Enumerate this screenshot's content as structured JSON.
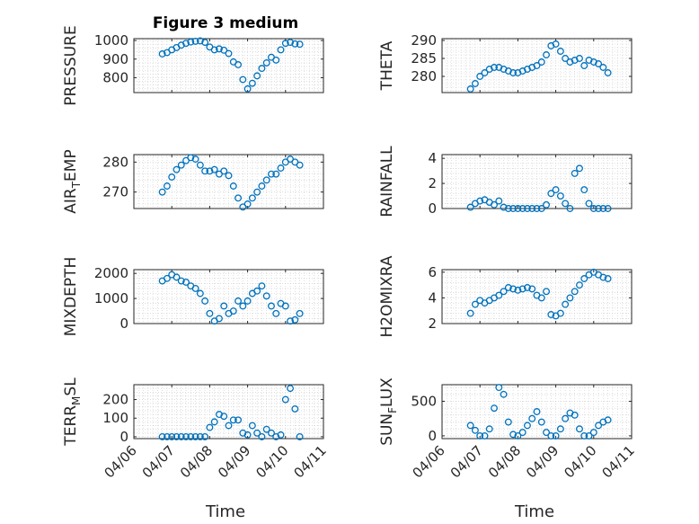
{
  "figure": {
    "title": "Figure 3 medium",
    "xlabel": "Time",
    "x_ticks": [
      "04/06",
      "04/07",
      "04/08",
      "04/09",
      "04/10",
      "04/11"
    ]
  },
  "chart_data": [
    {
      "type": "scatter",
      "ylabel": "PRESSURE",
      "ylim": [
        720,
        1010
      ],
      "yticks": [
        800,
        900,
        1000
      ],
      "ytick_labels": [
        "800",
        "900",
        "1000"
      ],
      "xlim": [
        "04/06",
        "04/11"
      ],
      "marker": "circle",
      "grid": "minor",
      "color": "#0072BD",
      "points": [
        [
          "04/06 18:00",
          928
        ],
        [
          "04/06 21:00",
          935
        ],
        [
          "04/07 00:00",
          950
        ],
        [
          "04/07 03:00",
          962
        ],
        [
          "04/07 06:00",
          975
        ],
        [
          "04/07 09:00",
          985
        ],
        [
          "04/07 12:00",
          992
        ],
        [
          "04/07 15:00",
          996
        ],
        [
          "04/07 18:00",
          998
        ],
        [
          "04/07 21:00",
          990
        ],
        [
          "04/08 00:00",
          965
        ],
        [
          "04/08 03:00",
          950
        ],
        [
          "04/08 06:00",
          955
        ],
        [
          "04/08 09:00",
          948
        ],
        [
          "04/08 12:00",
          930
        ],
        [
          "04/08 15:00",
          885
        ],
        [
          "04/08 18:00",
          870
        ],
        [
          "04/08 21:00",
          790
        ],
        [
          "04/09 00:00",
          740
        ],
        [
          "04/09 03:00",
          770
        ],
        [
          "04/09 06:00",
          810
        ],
        [
          "04/09 09:00",
          850
        ],
        [
          "04/09 12:00",
          880
        ],
        [
          "04/09 15:00",
          910
        ],
        [
          "04/09 18:00",
          895
        ],
        [
          "04/09 21:00",
          950
        ],
        [
          "04/10 00:00",
          985
        ],
        [
          "04/10 03:00",
          990
        ],
        [
          "04/10 06:00",
          982
        ],
        [
          "04/10 09:00",
          980
        ]
      ]
    },
    {
      "type": "scatter",
      "ylabel": "THETA",
      "ylim": [
        275.5,
        290.5
      ],
      "yticks": [
        280,
        285,
        290
      ],
      "ytick_labels": [
        "280",
        "285",
        "290"
      ],
      "xlim": [
        "04/06",
        "04/11"
      ],
      "marker": "circle",
      "grid": "minor",
      "color": "#0072BD",
      "points": [
        [
          "04/06 18:00",
          276.5
        ],
        [
          "04/06 21:00",
          278
        ],
        [
          "04/07 00:00",
          280
        ],
        [
          "04/07 03:00",
          281
        ],
        [
          "04/07 06:00",
          282
        ],
        [
          "04/07 09:00",
          282.5
        ],
        [
          "04/07 12:00",
          282.5
        ],
        [
          "04/07 15:00",
          282
        ],
        [
          "04/07 18:00",
          281.5
        ],
        [
          "04/07 21:00",
          281
        ],
        [
          "04/08 00:00",
          281
        ],
        [
          "04/08 03:00",
          281.5
        ],
        [
          "04/08 06:00",
          282
        ],
        [
          "04/08 09:00",
          282.5
        ],
        [
          "04/08 12:00",
          283
        ],
        [
          "04/08 15:00",
          284
        ],
        [
          "04/08 18:00",
          286
        ],
        [
          "04/08 21:00",
          288.5
        ],
        [
          "04/09 00:00",
          289
        ],
        [
          "04/09 03:00",
          287
        ],
        [
          "04/09 06:00",
          285
        ],
        [
          "04/09 09:00",
          284
        ],
        [
          "04/09 12:00",
          284.5
        ],
        [
          "04/09 15:00",
          285
        ],
        [
          "04/09 18:00",
          283
        ],
        [
          "04/09 21:00",
          284.5
        ],
        [
          "04/10 00:00",
          284
        ],
        [
          "04/10 03:00",
          283.5
        ],
        [
          "04/10 06:00",
          282.5
        ],
        [
          "04/10 09:00",
          281
        ]
      ]
    },
    {
      "type": "scatter",
      "ylabel": "AIR",
      "ylabel_sub": "T",
      "ylabel_rest": "EMP",
      "ylim": [
        264.5,
        282.5
      ],
      "yticks": [
        270,
        280
      ],
      "ytick_labels": [
        "270",
        "280"
      ],
      "xlim": [
        "04/06",
        "04/11"
      ],
      "marker": "circle",
      "grid": "minor",
      "color": "#0072BD",
      "points": [
        [
          "04/06 18:00",
          270
        ],
        [
          "04/06 21:00",
          272
        ],
        [
          "04/07 00:00",
          275
        ],
        [
          "04/07 03:00",
          277.5
        ],
        [
          "04/07 06:00",
          279
        ],
        [
          "04/07 09:00",
          280.5
        ],
        [
          "04/07 12:00",
          281.5
        ],
        [
          "04/07 15:00",
          281
        ],
        [
          "04/07 18:00",
          279
        ],
        [
          "04/07 21:00",
          277
        ],
        [
          "04/08 00:00",
          277
        ],
        [
          "04/08 03:00",
          277.5
        ],
        [
          "04/08 06:00",
          276
        ],
        [
          "04/08 09:00",
          277
        ],
        [
          "04/08 12:00",
          275.5
        ],
        [
          "04/08 15:00",
          272
        ],
        [
          "04/08 18:00",
          268
        ],
        [
          "04/08 21:00",
          265
        ],
        [
          "04/09 00:00",
          266
        ],
        [
          "04/09 03:00",
          268
        ],
        [
          "04/09 06:00",
          270
        ],
        [
          "04/09 09:00",
          272
        ],
        [
          "04/09 12:00",
          274
        ],
        [
          "04/09 15:00",
          276
        ],
        [
          "04/09 18:00",
          276
        ],
        [
          "04/09 21:00",
          278
        ],
        [
          "04/10 00:00",
          280
        ],
        [
          "04/10 03:00",
          281
        ],
        [
          "04/10 06:00",
          280
        ],
        [
          "04/10 09:00",
          279
        ]
      ]
    },
    {
      "type": "scatter",
      "ylabel": "RAINFALL",
      "ylim": [
        0,
        4.3
      ],
      "yticks": [
        0,
        2,
        4
      ],
      "ytick_labels": [
        "0",
        "2",
        "4"
      ],
      "xlim": [
        "04/06",
        "04/11"
      ],
      "marker": "circle",
      "grid": "minor",
      "color": "#0072BD",
      "points": [
        [
          "04/06 18:00",
          0.1
        ],
        [
          "04/06 21:00",
          0.4
        ],
        [
          "04/07 00:00",
          0.6
        ],
        [
          "04/07 03:00",
          0.7
        ],
        [
          "04/07 06:00",
          0.5
        ],
        [
          "04/07 09:00",
          0.3
        ],
        [
          "04/07 12:00",
          0.6
        ],
        [
          "04/07 15:00",
          0.1
        ],
        [
          "04/07 18:00",
          0.0
        ],
        [
          "04/07 21:00",
          0.0
        ],
        [
          "04/08 00:00",
          0.0
        ],
        [
          "04/08 03:00",
          0.0
        ],
        [
          "04/08 06:00",
          0.0
        ],
        [
          "04/08 09:00",
          0.0
        ],
        [
          "04/08 12:00",
          0.0
        ],
        [
          "04/08 15:00",
          0.0
        ],
        [
          "04/08 18:00",
          0.3
        ],
        [
          "04/08 21:00",
          1.2
        ],
        [
          "04/09 00:00",
          1.5
        ],
        [
          "04/09 03:00",
          1.0
        ],
        [
          "04/09 06:00",
          0.4
        ],
        [
          "04/09 09:00",
          0.0
        ],
        [
          "04/09 12:00",
          2.8
        ],
        [
          "04/09 15:00",
          3.2
        ],
        [
          "04/09 18:00",
          1.5
        ],
        [
          "04/09 21:00",
          0.4
        ],
        [
          "04/10 00:00",
          0.0
        ],
        [
          "04/10 03:00",
          0.0
        ],
        [
          "04/10 06:00",
          0.0
        ],
        [
          "04/10 09:00",
          0.0
        ]
      ]
    },
    {
      "type": "scatter",
      "ylabel": "MIXDEPTH",
      "ylim": [
        0,
        2150
      ],
      "yticks": [
        0,
        1000,
        2000
      ],
      "ytick_labels": [
        "0",
        "1000",
        "2000"
      ],
      "xlim": [
        "04/06",
        "04/11"
      ],
      "marker": "circle",
      "grid": "minor",
      "color": "#0072BD",
      "points": [
        [
          "04/06 18:00",
          1700
        ],
        [
          "04/06 21:00",
          1800
        ],
        [
          "04/07 00:00",
          1950
        ],
        [
          "04/07 03:00",
          1850
        ],
        [
          "04/07 06:00",
          1700
        ],
        [
          "04/07 09:00",
          1650
        ],
        [
          "04/07 12:00",
          1500
        ],
        [
          "04/07 15:00",
          1400
        ],
        [
          "04/07 18:00",
          1200
        ],
        [
          "04/07 21:00",
          900
        ],
        [
          "04/08 00:00",
          400
        ],
        [
          "04/08 03:00",
          100
        ],
        [
          "04/08 06:00",
          200
        ],
        [
          "04/08 09:00",
          700
        ],
        [
          "04/08 12:00",
          400
        ],
        [
          "04/08 15:00",
          500
        ],
        [
          "04/08 18:00",
          900
        ],
        [
          "04/08 21:00",
          700
        ],
        [
          "04/09 00:00",
          900
        ],
        [
          "04/09 03:00",
          1200
        ],
        [
          "04/09 06:00",
          1300
        ],
        [
          "04/09 09:00",
          1500
        ],
        [
          "04/09 12:00",
          1100
        ],
        [
          "04/09 15:00",
          700
        ],
        [
          "04/09 18:00",
          400
        ],
        [
          "04/09 21:00",
          800
        ],
        [
          "04/10 00:00",
          700
        ],
        [
          "04/10 03:00",
          100
        ],
        [
          "04/10 06:00",
          150
        ],
        [
          "04/10 09:00",
          400
        ]
      ]
    },
    {
      "type": "scatter",
      "ylabel": "H2OMIXRA",
      "ylim": [
        2,
        6.2
      ],
      "yticks": [
        2,
        4,
        6
      ],
      "ytick_labels": [
        "2",
        "4",
        "6"
      ],
      "xlim": [
        "04/06",
        "04/11"
      ],
      "marker": "circle",
      "grid": "minor",
      "color": "#0072BD",
      "points": [
        [
          "04/06 18:00",
          2.8
        ],
        [
          "04/06 21:00",
          3.5
        ],
        [
          "04/07 00:00",
          3.8
        ],
        [
          "04/07 03:00",
          3.6
        ],
        [
          "04/07 06:00",
          3.8
        ],
        [
          "04/07 09:00",
          4.0
        ],
        [
          "04/07 12:00",
          4.2
        ],
        [
          "04/07 15:00",
          4.5
        ],
        [
          "04/07 18:00",
          4.8
        ],
        [
          "04/07 21:00",
          4.7
        ],
        [
          "04/08 00:00",
          4.6
        ],
        [
          "04/08 03:00",
          4.7
        ],
        [
          "04/08 06:00",
          4.8
        ],
        [
          "04/08 09:00",
          4.7
        ],
        [
          "04/08 12:00",
          4.2
        ],
        [
          "04/08 15:00",
          4.0
        ],
        [
          "04/08 18:00",
          4.5
        ],
        [
          "04/08 21:00",
          2.7
        ],
        [
          "04/09 00:00",
          2.6
        ],
        [
          "04/09 03:00",
          2.8
        ],
        [
          "04/09 06:00",
          3.5
        ],
        [
          "04/09 09:00",
          4.0
        ],
        [
          "04/09 12:00",
          4.5
        ],
        [
          "04/09 15:00",
          5.0
        ],
        [
          "04/09 18:00",
          5.5
        ],
        [
          "04/09 21:00",
          5.8
        ],
        [
          "04/10 00:00",
          6.0
        ],
        [
          "04/10 03:00",
          5.8
        ],
        [
          "04/10 06:00",
          5.6
        ],
        [
          "04/10 09:00",
          5.5
        ]
      ]
    },
    {
      "type": "scatter",
      "ylabel": "TERR",
      "ylabel_sub": "M",
      "ylabel_rest": "SL",
      "ylim": [
        -10,
        280
      ],
      "yticks": [
        0,
        100,
        200
      ],
      "ytick_labels": [
        "0",
        "100",
        "200"
      ],
      "xlim": [
        "04/06",
        "04/11"
      ],
      "marker": "circle",
      "grid": "minor",
      "color": "#0072BD",
      "points": [
        [
          "04/06 18:00",
          0
        ],
        [
          "04/06 21:00",
          0
        ],
        [
          "04/07 00:00",
          0
        ],
        [
          "04/07 03:00",
          0
        ],
        [
          "04/07 06:00",
          0
        ],
        [
          "04/07 09:00",
          0
        ],
        [
          "04/07 12:00",
          0
        ],
        [
          "04/07 15:00",
          0
        ],
        [
          "04/07 18:00",
          0
        ],
        [
          "04/07 21:00",
          0
        ],
        [
          "04/08 00:00",
          50
        ],
        [
          "04/08 03:00",
          80
        ],
        [
          "04/08 06:00",
          120
        ],
        [
          "04/08 09:00",
          110
        ],
        [
          "04/08 12:00",
          60
        ],
        [
          "04/08 15:00",
          90
        ],
        [
          "04/08 18:00",
          90
        ],
        [
          "04/08 21:00",
          20
        ],
        [
          "04/09 00:00",
          10
        ],
        [
          "04/09 03:00",
          60
        ],
        [
          "04/09 06:00",
          20
        ],
        [
          "04/09 09:00",
          0
        ],
        [
          "04/09 12:00",
          40
        ],
        [
          "04/09 15:00",
          20
        ],
        [
          "04/09 18:00",
          0
        ],
        [
          "04/09 21:00",
          10
        ],
        [
          "04/10 00:00",
          200
        ],
        [
          "04/10 03:00",
          260
        ],
        [
          "04/10 06:00",
          150
        ],
        [
          "04/10 09:00",
          0
        ]
      ]
    },
    {
      "type": "scatter",
      "ylabel": "SUN",
      "ylabel_sub": "F",
      "ylabel_rest": "LUX",
      "ylim": [
        -40,
        740
      ],
      "yticks": [
        0,
        500
      ],
      "ytick_labels": [
        "0",
        "500"
      ],
      "xlim": [
        "04/06",
        "04/11"
      ],
      "marker": "circle",
      "grid": "minor",
      "color": "#0072BD",
      "points": [
        [
          "04/06 18:00",
          150
        ],
        [
          "04/06 21:00",
          80
        ],
        [
          "04/07 00:00",
          0
        ],
        [
          "04/07 03:00",
          0
        ],
        [
          "04/07 06:00",
          100
        ],
        [
          "04/07 09:00",
          400
        ],
        [
          "04/07 12:00",
          700
        ],
        [
          "04/07 15:00",
          600
        ],
        [
          "04/07 18:00",
          200
        ],
        [
          "04/07 21:00",
          20
        ],
        [
          "04/08 00:00",
          0
        ],
        [
          "04/08 03:00",
          50
        ],
        [
          "04/08 06:00",
          150
        ],
        [
          "04/08 09:00",
          250
        ],
        [
          "04/08 12:00",
          350
        ],
        [
          "04/08 15:00",
          200
        ],
        [
          "04/08 18:00",
          50
        ],
        [
          "04/08 21:00",
          0
        ],
        [
          "04/09 00:00",
          0
        ],
        [
          "04/09 03:00",
          100
        ],
        [
          "04/09 06:00",
          250
        ],
        [
          "04/09 09:00",
          330
        ],
        [
          "04/09 12:00",
          300
        ],
        [
          "04/09 15:00",
          100
        ],
        [
          "04/09 18:00",
          0
        ],
        [
          "04/09 21:00",
          0
        ],
        [
          "04/10 00:00",
          50
        ],
        [
          "04/10 03:00",
          150
        ],
        [
          "04/10 06:00",
          200
        ],
        [
          "04/10 09:00",
          230
        ]
      ]
    }
  ]
}
